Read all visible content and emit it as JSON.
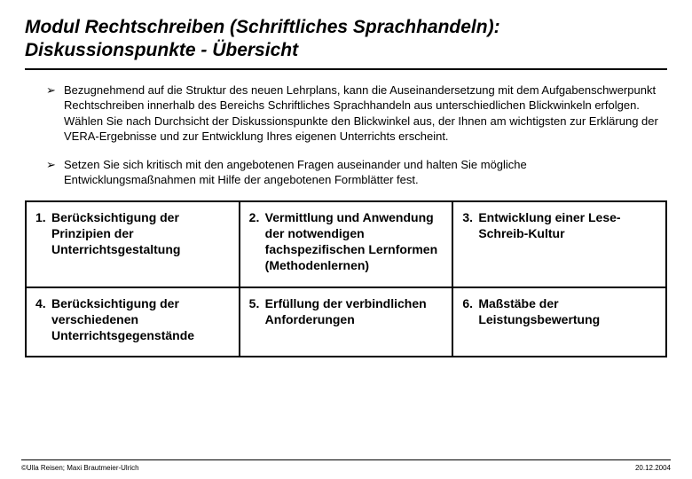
{
  "title": "Modul Rechtschreiben (Schriftliches Sprachhandeln): Diskussionspunkte - Übersicht",
  "bullets": [
    "Bezugnehmend auf die Struktur des neuen Lehrplans, kann die Auseinandersetzung mit dem Aufgabenschwerpunkt Rechtschreiben innerhalb des Bereichs Schriftliches Sprachhandeln aus unterschiedlichen Blickwinkeln erfolgen. Wählen Sie nach Durchsicht der Diskussionspunkte den Blickwinkel aus, der Ihnen am wichtigsten zur Erklärung der VERA-Ergebnisse und zur Entwicklung Ihres eigenen Unterrichts erscheint.",
    "Setzen Sie sich kritisch mit den angebotenen Fragen auseinander und halten Sie mögliche Entwicklungsmaßnahmen mit Hilfe der angebotenen Formblätter fest."
  ],
  "cells": [
    {
      "n": "1.",
      "t": "Berücksichtigung der Prinzipien der Unterrichtsgestaltung"
    },
    {
      "n": "2.",
      "t": "Vermittlung und Anwendung der notwendigen fachspezifischen Lernformen (Methodenlernen)"
    },
    {
      "n": "3.",
      "t": "Entwicklung einer Lese-Schreib-Kultur"
    },
    {
      "n": "4.",
      "t": "Berücksichtigung der verschiedenen Unterrichtsgegenstände"
    },
    {
      "n": "5.",
      "t": "Erfüllung der verbindlichen Anforderungen"
    },
    {
      "n": "6.",
      "t": "Maßstäbe der Leistungsbewertung"
    }
  ],
  "footer_left": "©Ulla Reisen; Maxi Brautmeier-Ulrich",
  "footer_right": "20.12.2004",
  "colors": {
    "text": "#000000",
    "background": "#ffffff",
    "border": "#000000"
  },
  "bullet_glyph": "➢"
}
